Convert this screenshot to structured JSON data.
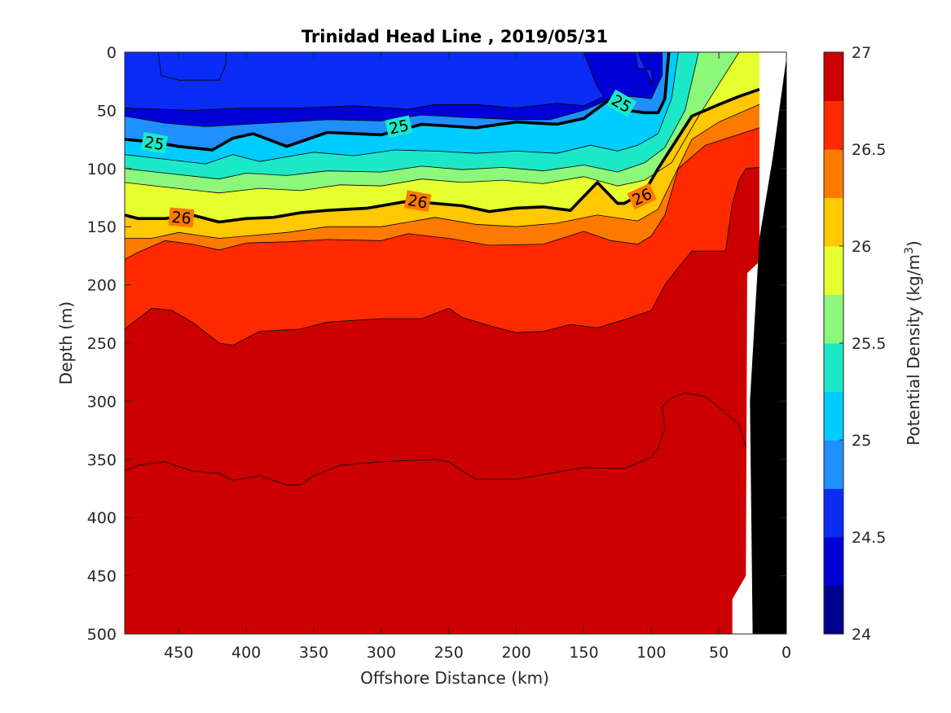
{
  "chart_data": {
    "type": "heatmap",
    "subtype": "filled-contour-section",
    "title": "Trinidad Head Line , 2019/05/31",
    "xlabel": "Offshore Distance (km)",
    "ylabel": "Depth (m)",
    "colorbar_label": "Potential Density (kg/m",
    "colorbar_label_sup": "3",
    "colorbar_label_end": ")",
    "xlim": [
      490,
      0
    ],
    "x_reversed": true,
    "ylim": [
      0,
      500
    ],
    "y_reversed": true,
    "xticks": [
      450,
      400,
      350,
      300,
      250,
      200,
      150,
      100,
      50,
      0
    ],
    "yticks": [
      0,
      50,
      100,
      150,
      200,
      250,
      300,
      350,
      400,
      450,
      500
    ],
    "colorbar": {
      "range": [
        24,
        27
      ],
      "step": 0.25,
      "ticks": [
        24,
        24.5,
        25,
        25.5,
        26,
        26.5,
        27
      ],
      "colors": [
        "#00008f",
        "#0000d6",
        "#0a2cf5",
        "#1e90ff",
        "#00ccff",
        "#1ce8c8",
        "#8cf77a",
        "#e6ff2e",
        "#ffc800",
        "#ff7a00",
        "#ff2a00",
        "#cc0000"
      ]
    },
    "contours": [
      {
        "level": 24.25,
        "points": [
          [
            465,
            0
          ],
          [
            463,
            20
          ],
          [
            450,
            24
          ],
          [
            420,
            24
          ],
          [
            415,
            10
          ],
          [
            415,
            0
          ]
        ]
      },
      {
        "level": 24.5,
        "points": [
          [
            490,
            0
          ],
          [
            490,
            48
          ],
          [
            440,
            50
          ],
          [
            400,
            48
          ],
          [
            360,
            48
          ],
          [
            320,
            46
          ],
          [
            280,
            49
          ],
          [
            260,
            45
          ],
          [
            230,
            45
          ],
          [
            200,
            48
          ],
          [
            170,
            44
          ],
          [
            150,
            46
          ],
          [
            135,
            38
          ],
          [
            140,
            30
          ],
          [
            145,
            15
          ],
          [
            150,
            0
          ]
        ]
      },
      {
        "level": 24.5,
        "points": [
          [
            112,
            0
          ],
          [
            110,
            14
          ],
          [
            100,
            15
          ],
          [
            99,
            28
          ],
          [
            110,
            0
          ]
        ]
      },
      {
        "level": 24.75,
        "points": [
          [
            490,
            55
          ],
          [
            460,
            61
          ],
          [
            430,
            64
          ],
          [
            400,
            62
          ],
          [
            370,
            60
          ],
          [
            340,
            58
          ],
          [
            300,
            59
          ],
          [
            270,
            54
          ],
          [
            240,
            56
          ],
          [
            200,
            58
          ],
          [
            175,
            58
          ],
          [
            150,
            50
          ],
          [
            130,
            40
          ],
          [
            115,
            38
          ],
          [
            100,
            40
          ],
          [
            92,
            20
          ],
          [
            92,
            0
          ]
        ]
      },
      {
        "level": 25,
        "points": [
          [
            490,
            75
          ],
          [
            470,
            77
          ],
          [
            450,
            81
          ],
          [
            425,
            84
          ],
          [
            410,
            74
          ],
          [
            395,
            70
          ],
          [
            370,
            81
          ],
          [
            340,
            69
          ],
          [
            300,
            71
          ],
          [
            270,
            62
          ],
          [
            230,
            65
          ],
          [
            200,
            60
          ],
          [
            170,
            62
          ],
          [
            150,
            57
          ],
          [
            130,
            40
          ],
          [
            118,
            50
          ],
          [
            105,
            52
          ],
          [
            95,
            52
          ],
          [
            90,
            40
          ],
          [
            87,
            0
          ]
        ]
      },
      {
        "level": 25.25,
        "points": [
          [
            490,
            88
          ],
          [
            460,
            92
          ],
          [
            430,
            96
          ],
          [
            410,
            88
          ],
          [
            390,
            94
          ],
          [
            370,
            90
          ],
          [
            350,
            86
          ],
          [
            320,
            89
          ],
          [
            290,
            84
          ],
          [
            260,
            85
          ],
          [
            230,
            87
          ],
          [
            200,
            85
          ],
          [
            170,
            87
          ],
          [
            145,
            80
          ],
          [
            125,
            85
          ],
          [
            110,
            80
          ],
          [
            95,
            70
          ],
          [
            85,
            40
          ],
          [
            80,
            0
          ]
        ]
      },
      {
        "level": 25.5,
        "points": [
          [
            490,
            100
          ],
          [
            460,
            104
          ],
          [
            420,
            109
          ],
          [
            400,
            104
          ],
          [
            370,
            106
          ],
          [
            340,
            102
          ],
          [
            300,
            103
          ],
          [
            270,
            98
          ],
          [
            240,
            101
          ],
          [
            210,
            99
          ],
          [
            180,
            102
          ],
          [
            150,
            97
          ],
          [
            125,
            103
          ],
          [
            105,
            95
          ],
          [
            90,
            82
          ],
          [
            75,
            50
          ],
          [
            65,
            0
          ]
        ]
      },
      {
        "level": 25.75,
        "points": [
          [
            490,
            112
          ],
          [
            460,
            116
          ],
          [
            420,
            121
          ],
          [
            390,
            117
          ],
          [
            360,
            119
          ],
          [
            330,
            114
          ],
          [
            300,
            115
          ],
          [
            270,
            109
          ],
          [
            240,
            112
          ],
          [
            210,
            110
          ],
          [
            180,
            113
          ],
          [
            150,
            107
          ],
          [
            125,
            115
          ],
          [
            105,
            110
          ],
          [
            85,
            95
          ],
          [
            65,
            55
          ],
          [
            35,
            0
          ]
        ]
      },
      {
        "level": 26,
        "points": [
          [
            490,
            140
          ],
          [
            480,
            143
          ],
          [
            460,
            143
          ],
          [
            440,
            140
          ],
          [
            420,
            146
          ],
          [
            400,
            143
          ],
          [
            380,
            142
          ],
          [
            360,
            138
          ],
          [
            340,
            136
          ],
          [
            310,
            134
          ],
          [
            280,
            128
          ],
          [
            240,
            132
          ],
          [
            220,
            137
          ],
          [
            200,
            134
          ],
          [
            180,
            133
          ],
          [
            160,
            136
          ],
          [
            140,
            112
          ],
          [
            125,
            130
          ],
          [
            120,
            130
          ],
          [
            105,
            120
          ],
          [
            95,
            100
          ],
          [
            70,
            55
          ],
          [
            50,
            45
          ],
          [
            35,
            38
          ],
          [
            20,
            32
          ]
        ]
      },
      {
        "level": 26.25,
        "points": [
          [
            490,
            160
          ],
          [
            470,
            160
          ],
          [
            450,
            155
          ],
          [
            420,
            160
          ],
          [
            400,
            158
          ],
          [
            370,
            155
          ],
          [
            340,
            150
          ],
          [
            300,
            150
          ],
          [
            260,
            142
          ],
          [
            230,
            148
          ],
          [
            200,
            150
          ],
          [
            170,
            147
          ],
          [
            140,
            140
          ],
          [
            110,
            145
          ],
          [
            95,
            135
          ],
          [
            70,
            75
          ],
          [
            50,
            60
          ],
          [
            20,
            45
          ]
        ]
      },
      {
        "level": 26.5,
        "points": [
          [
            490,
            178
          ],
          [
            480,
            172
          ],
          [
            460,
            162
          ],
          [
            440,
            165
          ],
          [
            420,
            170
          ],
          [
            400,
            164
          ],
          [
            370,
            163
          ],
          [
            340,
            161
          ],
          [
            300,
            162
          ],
          [
            280,
            156
          ],
          [
            250,
            160
          ],
          [
            220,
            166
          ],
          [
            180,
            165
          ],
          [
            150,
            154
          ],
          [
            130,
            162
          ],
          [
            110,
            165
          ],
          [
            100,
            158
          ],
          [
            90,
            140
          ],
          [
            80,
            100
          ],
          [
            60,
            80
          ],
          [
            20,
            65
          ]
        ]
      },
      {
        "level": 26.75,
        "points": [
          [
            490,
            238
          ],
          [
            470,
            220
          ],
          [
            455,
            222
          ],
          [
            440,
            232
          ],
          [
            420,
            250
          ],
          [
            410,
            252
          ],
          [
            390,
            240
          ],
          [
            360,
            238
          ],
          [
            340,
            232
          ],
          [
            300,
            229
          ],
          [
            270,
            229
          ],
          [
            250,
            220
          ],
          [
            240,
            228
          ],
          [
            220,
            235
          ],
          [
            200,
            241
          ],
          [
            180,
            240
          ],
          [
            160,
            234
          ],
          [
            140,
            237
          ],
          [
            120,
            230
          ],
          [
            100,
            222
          ],
          [
            90,
            200
          ],
          [
            80,
            185
          ],
          [
            75,
            178
          ],
          [
            70,
            171
          ],
          [
            45,
            171
          ],
          [
            40,
            130
          ],
          [
            35,
            110
          ],
          [
            30,
            100
          ],
          [
            20,
            99
          ]
        ]
      },
      {
        "level": 27,
        "points": [
          [
            490,
            360
          ],
          [
            480,
            355
          ],
          [
            460,
            352
          ],
          [
            440,
            360
          ],
          [
            420,
            362
          ],
          [
            410,
            368
          ],
          [
            390,
            364
          ],
          [
            370,
            372
          ],
          [
            360,
            372
          ],
          [
            350,
            364
          ],
          [
            330,
            355
          ],
          [
            300,
            352
          ],
          [
            260,
            350
          ],
          [
            250,
            352
          ],
          [
            240,
            360
          ],
          [
            230,
            367
          ],
          [
            200,
            367
          ],
          [
            170,
            361
          ],
          [
            150,
            357
          ],
          [
            120,
            358
          ],
          [
            100,
            348
          ],
          [
            95,
            340
          ],
          [
            90,
            323
          ],
          [
            92,
            305
          ],
          [
            85,
            297
          ],
          [
            75,
            293
          ],
          [
            60,
            296
          ],
          [
            45,
            310
          ],
          [
            35,
            320
          ],
          [
            30,
            340
          ]
        ]
      }
    ],
    "contour_labels": [
      {
        "text": "25",
        "x": 468,
        "y": 78,
        "angle": 10
      },
      {
        "text": "25",
        "x": 287,
        "y": 64,
        "angle": -12
      },
      {
        "text": "25",
        "x": 122,
        "y": 44,
        "angle": 30
      },
      {
        "text": "26",
        "x": 448,
        "y": 142,
        "angle": 5
      },
      {
        "text": "26",
        "x": 273,
        "y": 128,
        "angle": 10
      },
      {
        "text": "26",
        "x": 107,
        "y": 124,
        "angle": -25
      }
    ],
    "labeled_contour_levels": [
      25,
      26
    ],
    "land_mask": {
      "color": "#000000",
      "description": "seafloor"
    }
  }
}
